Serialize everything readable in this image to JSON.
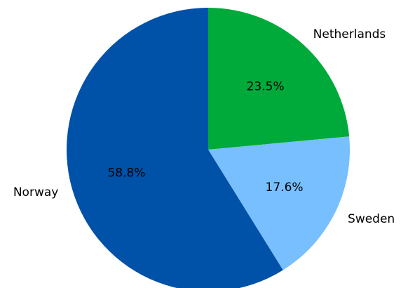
{
  "chart_data": {
    "type": "pie",
    "title": "",
    "categories": [
      "Netherlands",
      "Sweden",
      "Norway"
    ],
    "values": [
      23.5,
      17.6,
      58.8
    ],
    "value_labels": [
      "23.5%",
      "17.6%",
      "58.8%"
    ],
    "colors": [
      "#00aa3a",
      "#77bfff",
      "#0051a8"
    ],
    "start_angle_deg": 90,
    "direction": "clockwise",
    "legend": "none"
  }
}
